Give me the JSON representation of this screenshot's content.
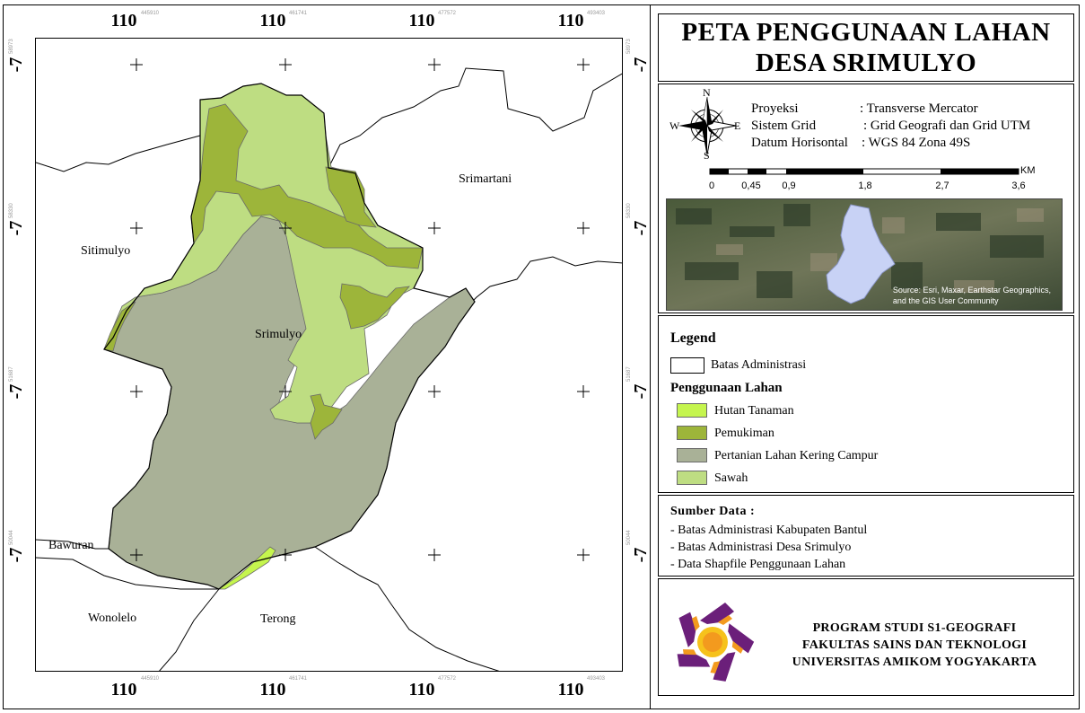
{
  "map": {
    "grid_top_labels": [
      "110",
      "110",
      "110",
      "110"
    ],
    "grid_bottom_labels": [
      "110",
      "110",
      "110",
      "110"
    ],
    "grid_left_labels": [
      "-7",
      "-7",
      "-7",
      "-7"
    ],
    "grid_right_labels": [
      "-7",
      "-7",
      "-7",
      "-7"
    ],
    "tiny_top_labels": [
      "445910",
      "461741",
      "477572",
      "493403"
    ],
    "tiny_bottom_labels": [
      "445910",
      "461741",
      "477572",
      "493403"
    ],
    "tiny_left_labels": [
      "58973",
      "58330",
      "51687",
      "50044"
    ],
    "tiny_right_labels": [
      "58973",
      "58330",
      "51687",
      "50044"
    ],
    "places": {
      "srimartani": "Srimartani",
      "sitimulyo": "Sitimulyo",
      "srimulyo": "Srimulyo",
      "bawuran": "Bawuran",
      "wonolelo": "Wonolelo",
      "terong": "Terong"
    },
    "colors": {
      "hutan_tanaman": "#c5f54e",
      "pemukiman": "#9db53a",
      "pertanian": "#a9b197",
      "sawah": "#bedd82",
      "boundary": "#000000"
    }
  },
  "title": {
    "line1": "PETA PENGGUNAAN LAHAN",
    "line2": "DESA SRIMULYO"
  },
  "info": {
    "compass": {
      "n": "N",
      "s": "S",
      "e": "E",
      "w": "W"
    },
    "proyeksi_key": "Proyeksi",
    "proyeksi_val": ": Transverse Mercator",
    "grid_key": "Sistem Grid",
    "grid_val": ": Grid Geografi dan Grid UTM",
    "datum_key": "Datum Horisontal",
    "datum_val": ": WGS 84 Zona 49S",
    "scalebar_unit": "KM",
    "scalebar_labels": [
      "0",
      "0,45",
      "0,9",
      "1,8",
      "2,7",
      "3,6"
    ]
  },
  "inset": {
    "credit_line1": "Source: Esri, Maxar, Earthstar Geographics,",
    "credit_line2": "and the GIS User Community"
  },
  "legend": {
    "title": "Legend",
    "admin_label": "Batas Administrasi",
    "landuse_title": "Penggunaan Lahan",
    "items": [
      {
        "label": "Hutan Tanaman",
        "color": "#c5f54e"
      },
      {
        "label": "Pemukiman",
        "color": "#9db53a"
      },
      {
        "label": "Pertanian Lahan Kering Campur",
        "color": "#a9b197"
      },
      {
        "label": "Sawah",
        "color": "#bedd82"
      }
    ]
  },
  "sources": {
    "title": "Sumber Data :",
    "items": [
      "- Batas Administrasi Kabupaten Bantul",
      "- Batas Administrasi Desa Srimulyo",
      "- Data Shapfile Penggunaan Lahan"
    ]
  },
  "institution": {
    "line1": "PROGRAM STUDI S1-GEOGRAFI",
    "line2": "FAKULTAS SAINS DAN TEKNOLOGI",
    "line3": "UNIVERSITAS AMIKOM YOGYAKARTA",
    "logo_colors": {
      "purple": "#6b1f7a",
      "orange": "#f39a1e",
      "yellow": "#f6c21c"
    }
  }
}
